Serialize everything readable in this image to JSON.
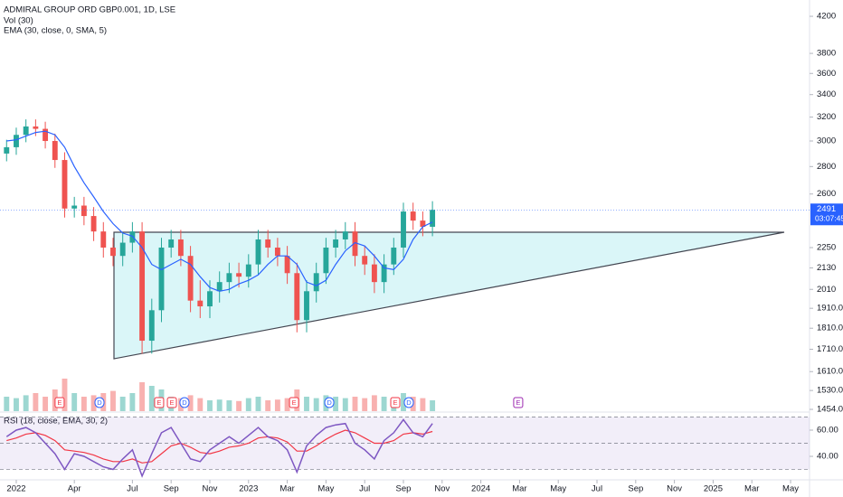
{
  "chart_data": {
    "type": "candlestick",
    "title": "ADMIRAL GROUP ORD GBP0.001, 1D, LSE",
    "indicators": [
      "Vol (30)",
      "EMA (30, close, 0, SMA, 5)"
    ],
    "x": [
      -0.5,
      0,
      0.5,
      1,
      1.5,
      2,
      2.5,
      3,
      3.5,
      4,
      4.5,
      5,
      5.5,
      6,
      6.5,
      7,
      7.5,
      8,
      8.5,
      9,
      9.5,
      10,
      10.5,
      11,
      11.5,
      12,
      12.5,
      13,
      13.5,
      14,
      14.5,
      15,
      15.5,
      16,
      16.5,
      17,
      17.5,
      18,
      18.5,
      19,
      19.5,
      20,
      20.5,
      21,
      21.5
    ],
    "open": [
      2900,
      2950,
      3050,
      3120,
      3100,
      3000,
      2850,
      2500,
      2520,
      2450,
      2350,
      2250,
      2200,
      2280,
      2350,
      1750,
      1900,
      2250,
      2300,
      2200,
      1950,
      1920,
      2000,
      2050,
      2100,
      2080,
      2150,
      2300,
      2250,
      2200,
      2100,
      1850,
      2000,
      2100,
      2250,
      2300,
      2350,
      2200,
      2150,
      2050,
      2150,
      2250,
      2480,
      2420,
      2380
    ],
    "high": [
      3010,
      3110,
      3180,
      3180,
      3160,
      3060,
      2910,
      2580,
      2580,
      2510,
      2410,
      2310,
      2340,
      2410,
      2410,
      1960,
      2310,
      2360,
      2360,
      2260,
      2060,
      2060,
      2110,
      2160,
      2160,
      2210,
      2360,
      2360,
      2310,
      2260,
      2160,
      2060,
      2160,
      2310,
      2360,
      2410,
      2410,
      2260,
      2210,
      2210,
      2310,
      2540,
      2540,
      2480,
      2550
    ],
    "low": [
      2840,
      2890,
      2990,
      3040,
      2940,
      2790,
      2440,
      2440,
      2390,
      2290,
      2190,
      2140,
      2140,
      2220,
      1690,
      1690,
      1840,
      2190,
      2140,
      1890,
      1860,
      1860,
      1940,
      1990,
      2020,
      2020,
      2090,
      2190,
      2140,
      2040,
      1790,
      1790,
      1940,
      2040,
      2190,
      2240,
      2140,
      2090,
      1990,
      1990,
      2090,
      2190,
      2360,
      2320,
      2320
    ],
    "close": [
      2950,
      3050,
      3120,
      3100,
      3000,
      2850,
      2500,
      2520,
      2450,
      2350,
      2250,
      2200,
      2280,
      2350,
      1750,
      1900,
      2250,
      2300,
      2200,
      1950,
      1920,
      2000,
      2050,
      2100,
      2080,
      2150,
      2300,
      2250,
      2200,
      2100,
      1850,
      2000,
      2100,
      2250,
      2300,
      2350,
      2200,
      2150,
      2050,
      2150,
      2250,
      2480,
      2420,
      2380,
      2491
    ],
    "ema": [
      3000,
      3010,
      3040,
      3070,
      3080,
      3050,
      2950,
      2800,
      2680,
      2580,
      2480,
      2400,
      2340,
      2320,
      2250,
      2150,
      2120,
      2150,
      2180,
      2150,
      2080,
      2020,
      2000,
      2010,
      2040,
      2060,
      2090,
      2150,
      2200,
      2200,
      2150,
      2050,
      2030,
      2060,
      2150,
      2230,
      2280,
      2260,
      2200,
      2130,
      2120,
      2180,
      2300,
      2380,
      2410
    ],
    "volume": [
      20,
      18,
      22,
      25,
      20,
      30,
      45,
      25,
      20,
      22,
      25,
      28,
      20,
      25,
      40,
      35,
      30,
      20,
      18,
      22,
      18,
      15,
      16,
      15,
      14,
      18,
      20,
      15,
      16,
      18,
      30,
      20,
      18,
      22,
      20,
      18,
      20,
      18,
      22,
      20,
      18,
      25,
      20,
      18,
      15
    ],
    "log_scale": true,
    "ylim": [
      1447,
      4389
    ],
    "yticks": [
      4200,
      3800,
      3600,
      3400,
      3200,
      3000,
      2800,
      2600,
      2250,
      2130,
      2010,
      {
        "value": 1910,
        "label": "1910.0"
      },
      {
        "value": 1810,
        "label": "1810.0"
      },
      {
        "value": 1710,
        "label": "1710.0"
      },
      {
        "value": 1610,
        "label": "1610.0"
      },
      {
        "value": 1530,
        "label": "1530.0"
      },
      {
        "value": 1454,
        "label": "1454.0"
      }
    ],
    "xlim": [
      -0.84,
      40.98
    ],
    "xticks": [
      {
        "value": 0,
        "label": "2022"
      },
      {
        "value": 3,
        "label": "Apr"
      },
      {
        "value": 6,
        "label": "Jul"
      },
      {
        "value": 8,
        "label": "Sep"
      },
      {
        "value": 10,
        "label": "Nov"
      },
      {
        "value": 12,
        "label": "2023"
      },
      {
        "value": 14,
        "label": "Mar"
      },
      {
        "value": 16,
        "label": "May"
      },
      {
        "value": 18,
        "label": "Jul"
      },
      {
        "value": 20,
        "label": "Sep"
      },
      {
        "value": 22,
        "label": "Nov"
      },
      {
        "value": 24,
        "label": "2024"
      },
      {
        "value": 26,
        "label": "Mar"
      },
      {
        "value": 28,
        "label": "May"
      },
      {
        "value": 30,
        "label": "Jul"
      },
      {
        "value": 32,
        "label": "Sep"
      },
      {
        "value": 34,
        "label": "Nov"
      },
      {
        "value": 36,
        "label": "2025"
      },
      {
        "value": 38,
        "label": "Mar"
      },
      {
        "value": 40,
        "label": "May"
      }
    ],
    "last_price": 2491,
    "countdown": "03:07:45",
    "events": [
      {
        "label": "E",
        "x": 2.24,
        "color": "#f23645"
      },
      {
        "label": "D",
        "x": 4.3,
        "color": "#2962ff"
      },
      {
        "label": "E",
        "x": 7.38,
        "color": "#f23645"
      },
      {
        "label": "E",
        "x": 8.04,
        "color": "#f23645"
      },
      {
        "label": "D",
        "x": 8.69,
        "color": "#2962ff"
      },
      {
        "label": "E",
        "x": 14.35,
        "color": "#f23645"
      },
      {
        "label": "D",
        "x": 16.17,
        "color": "#2962ff"
      },
      {
        "label": "E",
        "x": 19.58,
        "color": "#f23645"
      },
      {
        "label": "D",
        "x": 20.28,
        "color": "#2962ff"
      },
      {
        "label": "E",
        "x": 25.93,
        "color": "#9c27b0"
      }
    ],
    "colors": {
      "up": "#26a69a",
      "down": "#ef5350",
      "ema": "#2962ff",
      "price_label": "#2962ff"
    },
    "rsi": {
      "title": "RSI (18, close, EMA, 30, 2)",
      "values": [
        55,
        60,
        62,
        58,
        50,
        42,
        30,
        42,
        40,
        36,
        32,
        30,
        38,
        45,
        25,
        42,
        58,
        62,
        50,
        38,
        36,
        45,
        50,
        55,
        50,
        56,
        62,
        55,
        52,
        45,
        28,
        48,
        56,
        62,
        64,
        65,
        50,
        45,
        38,
        52,
        58,
        68,
        58,
        55,
        65
      ],
      "ema": [
        52,
        54,
        57,
        58,
        56,
        52,
        45,
        44,
        43,
        41,
        38,
        36,
        36,
        38,
        35,
        36,
        42,
        48,
        50,
        47,
        43,
        42,
        44,
        47,
        48,
        50,
        54,
        55,
        54,
        51,
        44,
        44,
        48,
        53,
        57,
        60,
        58,
        54,
        50,
        50,
        52,
        57,
        58,
        57,
        59
      ],
      "ylim": [
        22.8,
        72.4
      ],
      "yticks": [
        {
          "value": 60,
          "label": "60.00"
        },
        {
          "value": 40,
          "label": "40.00"
        }
      ],
      "bands": [
        30,
        50,
        70
      ],
      "color": "#7e57c2",
      "ema_color": "#f23645"
    }
  }
}
